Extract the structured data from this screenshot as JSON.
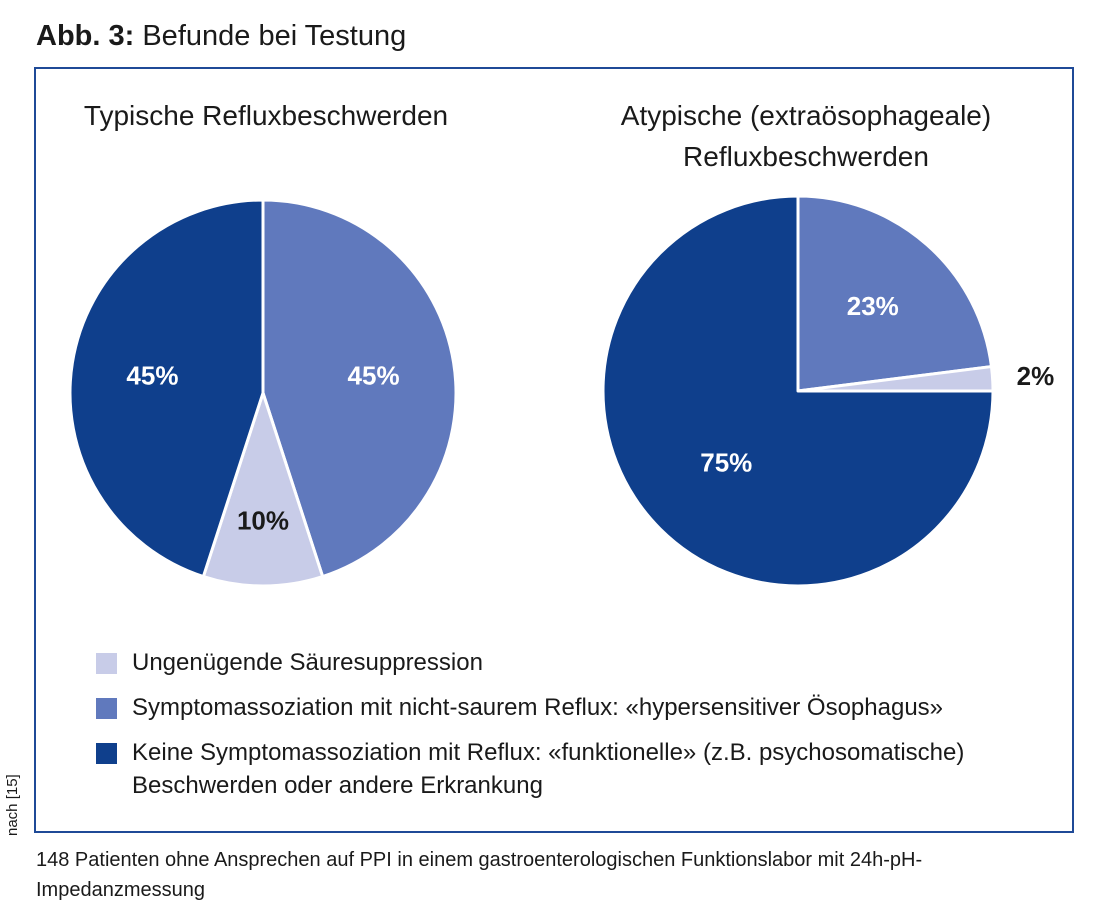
{
  "figure": {
    "label": "Abb. 3:",
    "title": "Befunde bei Testung",
    "source": "nach [15]",
    "caption": "148 Patienten ohne Ansprechen auf PPI in einem gastroenterologischen Funktionslabor mit 24h-pH-Impedanzmessung"
  },
  "legend": [
    {
      "label": "Ungenügende Säuresuppression",
      "color": "#c8cce8"
    },
    {
      "label": "Symptomassoziation mit nicht-saurem Reflux: «hypersensitiver Ösophagus»",
      "color": "#6079bd"
    },
    {
      "label": "Keine Symptomassoziation mit Reflux: «funktionelle» (z.B. psychosomatische) Beschwerden oder andere Erkrankung",
      "color": "#0f3f8c"
    }
  ],
  "chart_data": [
    {
      "type": "pie",
      "title": "Typische Refluxbeschwerden",
      "categories": [
        "Symptomassoziation mit nicht-saurem Reflux",
        "Ungenügende Säuresuppression",
        "Keine Symptomassoziation mit Reflux"
      ],
      "values": [
        45,
        10,
        45
      ],
      "labels": [
        "45%",
        "10%",
        "45%"
      ],
      "colors": [
        "#6079bd",
        "#c8cce8",
        "#0f3f8c"
      ],
      "label_colors": [
        "#ffffff",
        "#1a1a1a",
        "#ffffff"
      ]
    },
    {
      "type": "pie",
      "title": "Atypische (extraösophageale) Refluxbeschwerden",
      "categories": [
        "Symptomassoziation mit nicht-saurem Reflux",
        "Ungenügende Säuresuppression",
        "Keine Symptomassoziation mit Reflux"
      ],
      "values": [
        23,
        2,
        75
      ],
      "labels": [
        "23%",
        "2%",
        "75%"
      ],
      "colors": [
        "#6079bd",
        "#c8cce8",
        "#0f3f8c"
      ],
      "label_colors": [
        "#ffffff",
        "#1a1a1a",
        "#ffffff"
      ]
    }
  ]
}
